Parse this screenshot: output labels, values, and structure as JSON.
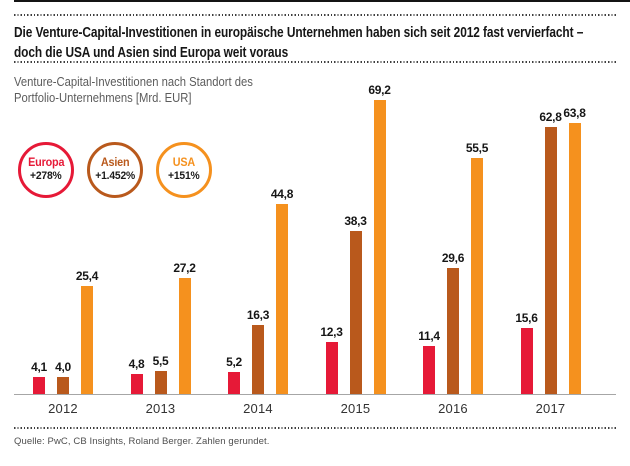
{
  "header": {
    "title_line1": "Die Venture-Capital-Investitionen in europäische Unternehmen haben sich seit 2012 fast vervierfacht –",
    "title_line2": "doch die USA und Asien sind Europa weit voraus",
    "subtitle_line1": "Venture-Capital-Investitionen nach Standort des",
    "subtitle_line2": "Portfolio-Unternehmens [Mrd. EUR]"
  },
  "legend": [
    {
      "label": "Europa",
      "change": "+278%",
      "color": "#e61937"
    },
    {
      "label": "Asien",
      "change": "+1.452%",
      "color": "#b9591c"
    },
    {
      "label": "USA",
      "change": "+151%",
      "color": "#f5911e"
    }
  ],
  "chart_data": {
    "type": "bar",
    "title": "Venture-Capital-Investitionen nach Standort des Portfolio-Unternehmens [Mrd. EUR]",
    "unit": "Mrd. EUR",
    "categories": [
      "2012",
      "2013",
      "2014",
      "2015",
      "2016",
      "2017"
    ],
    "series": [
      {
        "name": "Europa",
        "color": "#e61937",
        "values": [
          4.1,
          4.8,
          5.2,
          12.3,
          11.4,
          15.6
        ],
        "labels": [
          "4,1",
          "4,8",
          "5,2",
          "12,3",
          "11,4",
          "15,6"
        ]
      },
      {
        "name": "Asien",
        "color": "#b9591c",
        "values": [
          4.0,
          5.5,
          16.3,
          38.3,
          29.6,
          62.8
        ],
        "labels": [
          "4,0",
          "5,5",
          "16,3",
          "38,3",
          "29,6",
          "62,8"
        ]
      },
      {
        "name": "USA",
        "color": "#f5911e",
        "values": [
          25.4,
          27.2,
          44.8,
          69.2,
          55.5,
          63.8
        ],
        "labels": [
          "25,4",
          "27,2",
          "44,8",
          "69,2",
          "55,5",
          "63,8"
        ]
      }
    ],
    "ylim": [
      0,
      72
    ],
    "grid": false,
    "legend_position": "top-left",
    "value_labels_shown": true
  },
  "footer": {
    "source": "Quelle: PwC, CB Insights, Roland Berger. Zahlen gerundet."
  }
}
